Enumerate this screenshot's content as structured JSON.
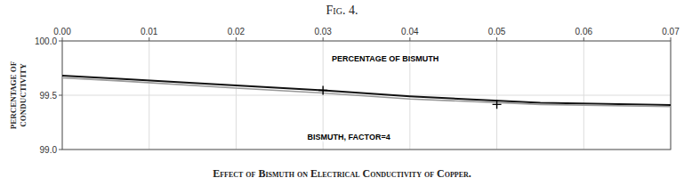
{
  "chart_data": {
    "type": "line",
    "title": "Fig. 4.",
    "caption": "Effect of Bismuth on Electrical Conductivity of Copper.",
    "ylabel": "PERCENTAGE OF\nCONDUCTIVITY",
    "annotations": [
      "PERCENTAGE OF BISMUTH",
      "BISMUTH, FACTOR=4"
    ],
    "xlim": [
      0,
      0.07
    ],
    "ylim": [
      99.0,
      100.0
    ],
    "xticks": [
      {
        "value": 0,
        "label": "0.00"
      },
      0.01,
      0.02,
      0.03,
      0.04,
      0.05,
      0.06,
      0.07
    ],
    "yticks": [
      {
        "value": 99.0,
        "label": "99.0"
      },
      99.5,
      {
        "value": 100.0,
        "label": "100.0"
      }
    ],
    "grid": true,
    "series": [
      {
        "x": [
          0,
          0.007,
          0.02,
          0.03,
          0.04,
          0.055,
          0.07
        ],
        "values": [
          99.68,
          99.65,
          99.59,
          99.545,
          99.49,
          99.43,
          99.41
        ],
        "color": "#111111"
      },
      {
        "x": [
          0,
          0.007,
          0.02,
          0.03,
          0.04,
          0.055,
          0.07
        ],
        "values": [
          99.66,
          99.63,
          99.565,
          99.52,
          99.465,
          99.415,
          99.395
        ],
        "color": "#999999"
      },
      {
        "type": "scatter",
        "marker": "cross",
        "color": "#000000",
        "x": [
          0.03,
          0.05
        ],
        "values": [
          99.545,
          99.415
        ]
      }
    ]
  }
}
